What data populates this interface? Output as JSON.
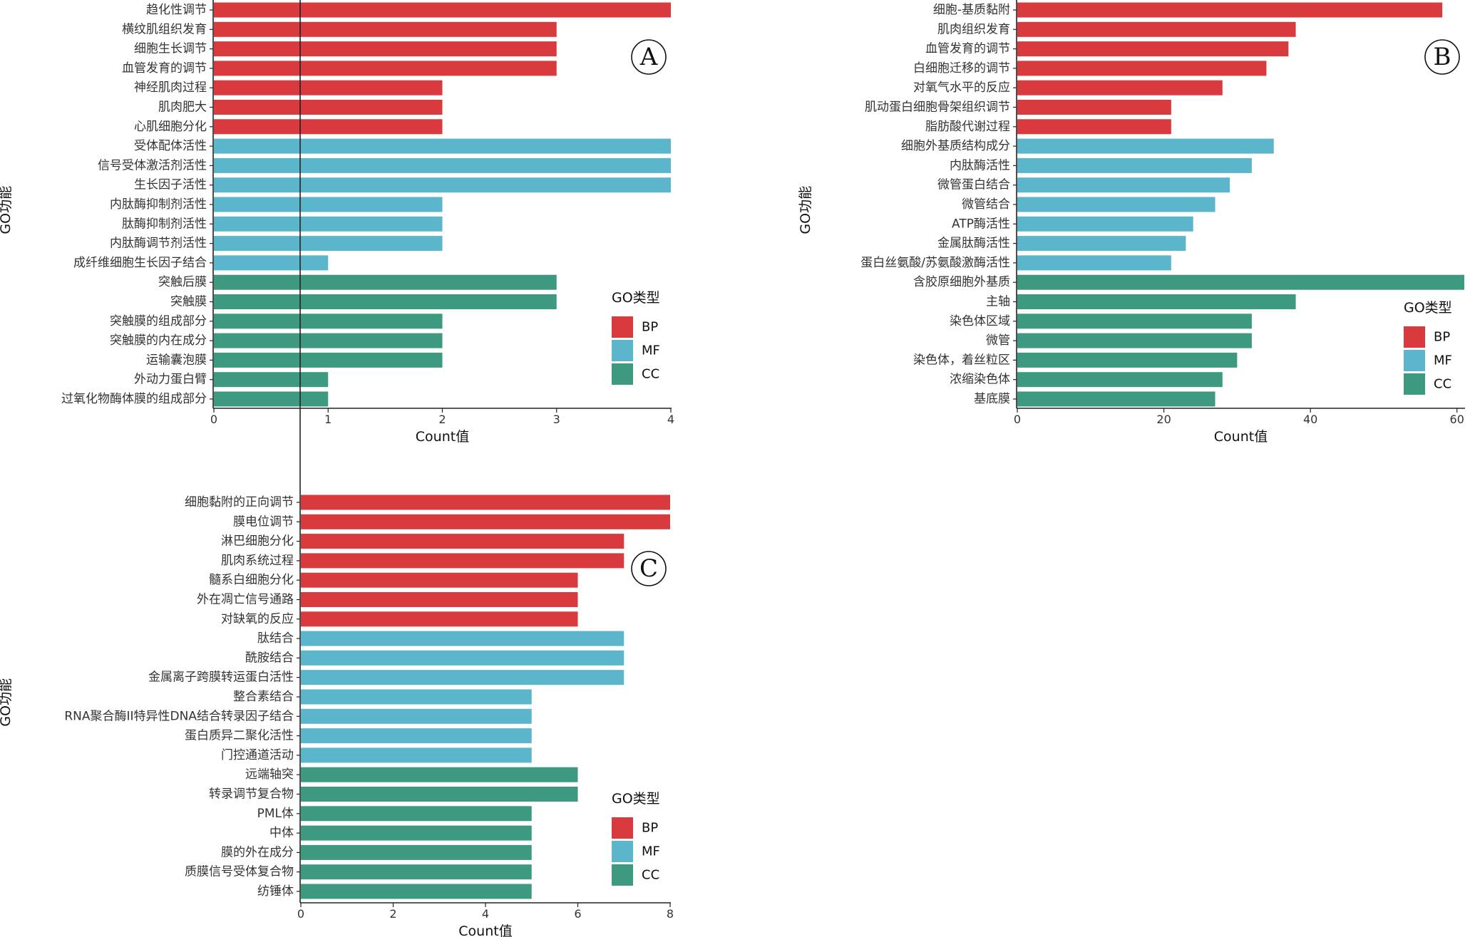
{
  "colors": {
    "BP": "#d93a3e",
    "MF": "#5bb6cb",
    "CC": "#3d9a80"
  },
  "chart_data": [
    {
      "type": "bar",
      "orientation": "horizontal",
      "panel": "A",
      "xlabel": "Count值",
      "ylabel": "GO功能",
      "xlim": [
        0,
        4
      ],
      "xticks": [
        0,
        1,
        2,
        3,
        4
      ],
      "legend": {
        "title": "GO类型",
        "entries": [
          "BP",
          "MF",
          "CC"
        ],
        "placement": "right"
      },
      "grid": false,
      "categories": [
        "趋化性调节",
        "横纹肌组织发育",
        "细胞生长调节",
        "血管发育的调节",
        "神经肌肉过程",
        "肌肉肥大",
        "心肌细胞分化",
        "受体配体活性",
        "信号受体激活剂活性",
        "生长因子活性",
        "内肽酶抑制剂活性",
        "肽酶抑制剂活性",
        "内肽酶调节剂活性",
        "成纤维细胞生长因子结合",
        "突触后膜",
        "突触膜",
        "突触膜的组成部分",
        "突触膜的内在成分",
        "运输囊泡膜",
        "外动力蛋白臂",
        "过氧化物酶体膜的组成部分"
      ],
      "values": [
        4,
        3,
        3,
        3,
        2,
        2,
        2,
        4,
        4,
        4,
        2,
        2,
        2,
        1,
        3,
        3,
        2,
        2,
        2,
        1,
        1
      ],
      "groups": [
        "BP",
        "BP",
        "BP",
        "BP",
        "BP",
        "BP",
        "BP",
        "MF",
        "MF",
        "MF",
        "MF",
        "MF",
        "MF",
        "MF",
        "CC",
        "CC",
        "CC",
        "CC",
        "CC",
        "CC",
        "CC"
      ]
    },
    {
      "type": "bar",
      "orientation": "horizontal",
      "panel": "B",
      "xlabel": "Count值",
      "ylabel": "GO功能",
      "xlim": [
        0,
        61
      ],
      "xticks": [
        0,
        20,
        40,
        60
      ],
      "legend": {
        "title": "GO类型",
        "entries": [
          "BP",
          "MF",
          "CC"
        ],
        "placement": "right"
      },
      "grid": false,
      "categories": [
        "细胞-基质黏附",
        "肌肉组织发育",
        "血管发育的调节",
        "白细胞迁移的调节",
        "对氧气水平的反应",
        "肌动蛋白细胞骨架组织调节",
        "脂肪酸代谢过程",
        "细胞外基质结构成分",
        "内肽酶活性",
        "微管蛋白结合",
        "微管结合",
        "ATP酶活性",
        "金属肽酶活性",
        "蛋白丝氨酸/苏氨酸激酶活性",
        "含胶原细胞外基质",
        "主轴",
        "染色体区域",
        "微管",
        "染色体，着丝粒区",
        "浓缩染色体",
        "基底膜"
      ],
      "values": [
        58,
        38,
        37,
        34,
        28,
        21,
        21,
        35,
        32,
        29,
        27,
        24,
        23,
        21,
        61,
        38,
        32,
        32,
        30,
        28,
        27
      ],
      "groups": [
        "BP",
        "BP",
        "BP",
        "BP",
        "BP",
        "BP",
        "BP",
        "MF",
        "MF",
        "MF",
        "MF",
        "MF",
        "MF",
        "MF",
        "CC",
        "CC",
        "CC",
        "CC",
        "CC",
        "CC",
        "CC"
      ]
    },
    {
      "type": "bar",
      "orientation": "horizontal",
      "panel": "C",
      "xlabel": "Count值",
      "ylabel": "GO功能",
      "xlim": [
        0,
        8
      ],
      "xticks": [
        0,
        2,
        4,
        6,
        8
      ],
      "legend": {
        "title": "GO类型",
        "entries": [
          "BP",
          "MF",
          "CC"
        ],
        "placement": "right"
      },
      "grid": false,
      "categories": [
        "细胞黏附的正向调节",
        "膜电位调节",
        "淋巴细胞分化",
        "肌肉系统过程",
        "髓系白细胞分化",
        "外在凋亡信号通路",
        "对缺氧的反应",
        "肽结合",
        "酰胺结合",
        "金属离子跨膜转运蛋白活性",
        "整合素结合",
        "RNA聚合酶II特异性DNA结合转录因子结合",
        "蛋白质异二聚化活性",
        "门控通道活动",
        "远端轴突",
        "转录调节复合物",
        "PML体",
        "中体",
        "膜的外在成分",
        "质膜信号受体复合物",
        "纺锤体"
      ],
      "values": [
        8,
        8,
        7,
        7,
        6,
        6,
        6,
        7,
        7,
        7,
        5,
        5,
        5,
        5,
        6,
        6,
        5,
        5,
        5,
        5,
        5
      ],
      "groups": [
        "BP",
        "BP",
        "BP",
        "BP",
        "BP",
        "BP",
        "BP",
        "MF",
        "MF",
        "MF",
        "MF",
        "MF",
        "MF",
        "MF",
        "CC",
        "CC",
        "CC",
        "CC",
        "CC",
        "CC",
        "CC"
      ]
    }
  ]
}
